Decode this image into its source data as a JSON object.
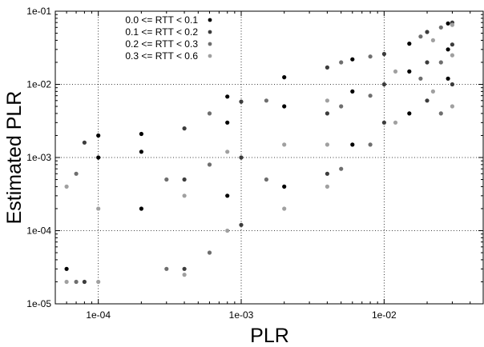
{
  "chart_data": {
    "type": "scatter",
    "title": "",
    "xlabel": "PLR",
    "ylabel": "Estimated PLR",
    "xscale": "log",
    "yscale": "log",
    "xlim": [
      5e-05,
      0.05
    ],
    "ylim": [
      1e-05,
      0.1
    ],
    "x_ticks": [
      {
        "value": 0.0001,
        "label": "1e-04"
      },
      {
        "value": 0.001,
        "label": "1e-03"
      },
      {
        "value": 0.01,
        "label": "1e-02"
      }
    ],
    "y_ticks": [
      {
        "value": 1e-05,
        "label": "1e-05"
      },
      {
        "value": 0.0001,
        "label": "1e-04"
      },
      {
        "value": 0.001,
        "label": "1e-03"
      },
      {
        "value": 0.01,
        "label": "1e-02"
      },
      {
        "value": 0.1,
        "label": "1e-01"
      }
    ],
    "grid": true,
    "legend_position": "top-left",
    "series": [
      {
        "name": "0.0 <= RTT < 0.1",
        "color": "#000000",
        "x": [
          6e-05,
          0.0001,
          0.0001,
          0.0002,
          0.0002,
          0.0002,
          0.0008,
          0.0008,
          0.0008,
          0.002,
          0.002,
          0.002,
          0.006,
          0.006,
          0.006,
          0.015,
          0.015,
          0.015,
          0.028,
          0.028,
          0.028
        ],
        "y": [
          3e-05,
          0.002,
          0.001,
          0.0021,
          0.0012,
          0.0002,
          0.0068,
          0.003,
          0.0003,
          0.0125,
          0.005,
          0.0004,
          0.022,
          0.008,
          0.0015,
          0.036,
          0.015,
          0.004,
          0.068,
          0.03,
          0.012
        ]
      },
      {
        "name": "0.1 <= RTT < 0.2",
        "color": "#3c3c3c",
        "x": [
          8e-05,
          8e-05,
          0.0004,
          0.0004,
          0.0004,
          0.001,
          0.001,
          0.001,
          0.004,
          0.004,
          0.004,
          0.01,
          0.01,
          0.01,
          0.02,
          0.02,
          0.02,
          0.03,
          0.03,
          0.03
        ],
        "y": [
          0.0016,
          2e-05,
          0.0025,
          0.0005,
          3e-05,
          0.0058,
          0.001,
          0.00012,
          0.017,
          0.004,
          0.0006,
          0.026,
          0.01,
          0.003,
          0.052,
          0.02,
          0.006,
          0.07,
          0.035,
          0.01
        ]
      },
      {
        "name": "0.2 <= RTT < 0.3",
        "color": "#6e6e6e",
        "x": [
          7e-05,
          7e-05,
          0.0003,
          0.0003,
          0.0006,
          0.0006,
          0.0006,
          0.0015,
          0.0015,
          0.005,
          0.005,
          0.005,
          0.008,
          0.008,
          0.008,
          0.018,
          0.018,
          0.025,
          0.025,
          0.025
        ],
        "y": [
          0.0006,
          2e-05,
          0.0005,
          3e-05,
          0.004,
          0.0008,
          5e-05,
          0.006,
          0.0005,
          0.02,
          0.005,
          0.0007,
          0.024,
          0.007,
          0.0015,
          0.045,
          0.012,
          0.06,
          0.02,
          0.004
        ]
      },
      {
        "name": "0.3 <= RTT < 0.6",
        "color": "#a0a0a0",
        "x": [
          6e-05,
          6e-05,
          0.0001,
          0.0001,
          0.0004,
          0.0004,
          0.0008,
          0.0008,
          0.002,
          0.002,
          0.004,
          0.004,
          0.004,
          0.012,
          0.012,
          0.022,
          0.022,
          0.03,
          0.03,
          0.03
        ],
        "y": [
          0.0004,
          2e-05,
          0.0002,
          2e-05,
          0.0003,
          2.5e-05,
          0.0012,
          0.0001,
          0.0015,
          0.0002,
          0.006,
          0.0015,
          0.0004,
          0.015,
          0.003,
          0.04,
          0.008,
          0.065,
          0.025,
          0.005
        ]
      }
    ]
  }
}
